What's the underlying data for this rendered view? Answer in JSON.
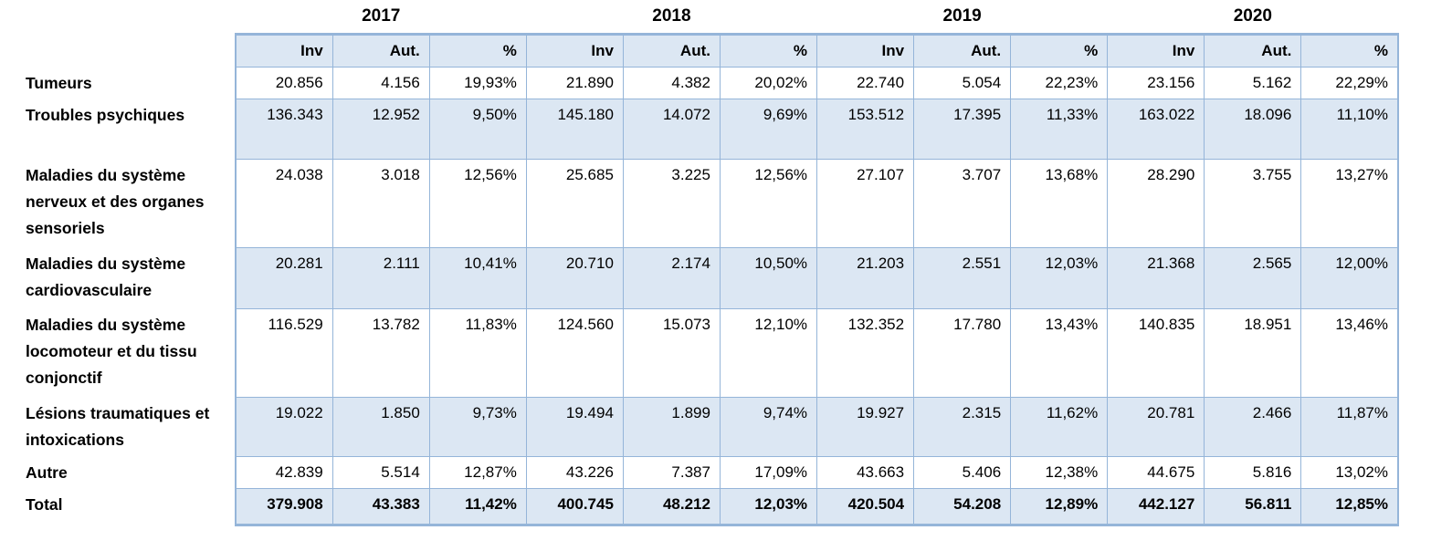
{
  "table": {
    "years": [
      "2017",
      "2018",
      "2019",
      "2020"
    ],
    "sub_headers": [
      "Inv",
      "Aut.",
      "%"
    ],
    "rows": [
      {
        "label": "Tumeurs",
        "values": [
          "20.856",
          "4.156",
          "19,93%",
          "21.890",
          "4.382",
          "20,02%",
          "22.740",
          "5.054",
          "22,23%",
          "23.156",
          "5.162",
          "22,29%"
        ]
      },
      {
        "label": "Troubles psychiques",
        "values": [
          "136.343",
          "12.952",
          "9,50%",
          "145.180",
          "14.072",
          "9,69%",
          "153.512",
          "17.395",
          "11,33%",
          "163.022",
          "18.096",
          "11,10%"
        ]
      },
      {
        "label": "Maladies du système nerveux et des organes sensoriels",
        "values": [
          "24.038",
          "3.018",
          "12,56%",
          "25.685",
          "3.225",
          "12,56%",
          "27.107",
          "3.707",
          "13,68%",
          "28.290",
          "3.755",
          "13,27%"
        ]
      },
      {
        "label": "Maladies du système cardiovasculaire",
        "values": [
          "20.281",
          "2.111",
          "10,41%",
          "20.710",
          "2.174",
          "10,50%",
          "21.203",
          "2.551",
          "12,03%",
          "21.368",
          "2.565",
          "12,00%"
        ]
      },
      {
        "label": "Maladies du système locomoteur et du tissu conjonctif",
        "values": [
          "116.529",
          "13.782",
          "11,83%",
          "124.560",
          "15.073",
          "12,10%",
          "132.352",
          "17.780",
          "13,43%",
          "140.835",
          "18.951",
          "13,46%"
        ]
      },
      {
        "label": "Lésions traumatiques et intoxications",
        "values": [
          "19.022",
          "1.850",
          "9,73%",
          "19.494",
          "1.899",
          "9,74%",
          "19.927",
          "2.315",
          "11,62%",
          "20.781",
          "2.466",
          "11,87%"
        ]
      },
      {
        "label": "Autre",
        "values": [
          "42.839",
          "5.514",
          "12,87%",
          "43.226",
          "7.387",
          "17,09%",
          "43.663",
          "5.406",
          "12,38%",
          "44.675",
          "5.816",
          "13,02%"
        ]
      },
      {
        "label": "Total",
        "is_total": true,
        "values": [
          "379.908",
          "43.383",
          "11,42%",
          "400.745",
          "48.212",
          "12,03%",
          "420.504",
          "54.208",
          "12,89%",
          "442.127",
          "56.811",
          "12,85%"
        ]
      }
    ],
    "colors": {
      "cell_fill": "#DCE7F3",
      "grid_line": "#95B5D9",
      "text": "#000000"
    }
  }
}
